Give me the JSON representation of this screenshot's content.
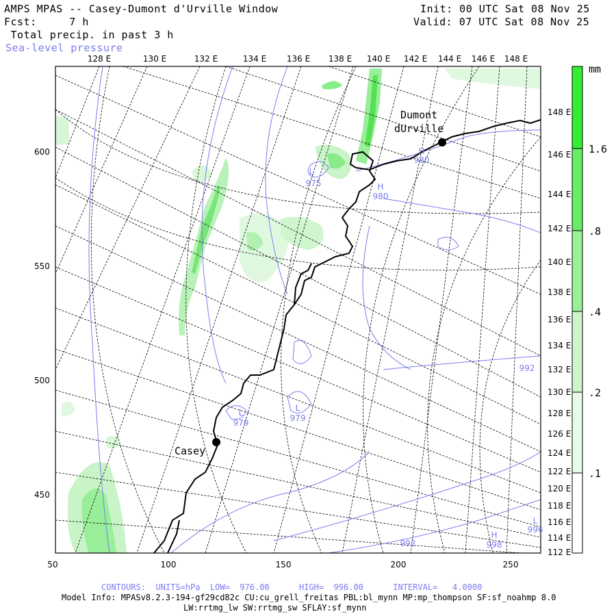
{
  "header": {
    "title": "AMPS MPAS -- Casey-Dumont d'Urville Window",
    "forecast": "Fcst:     7 h",
    "field": " Total precip. in past 3 h",
    "overlay": "Sea-level pressure",
    "init": "Init: 00 UTC Sat 08 Nov 25",
    "valid": "Valid: 07 UTC Sat 08 Nov 25"
  },
  "map": {
    "top_lon_labels": [
      "128 E",
      "130 E",
      "132 E",
      "134 E",
      "136 E",
      "138 E",
      "140 E",
      "142 E",
      "144 E",
      "146 E",
      "148 E"
    ],
    "right_lon_labels": [
      "148 E",
      "146 E",
      "144 E",
      "142 E",
      "140 E",
      "138 E",
      "136 E",
      "134 E",
      "132 E",
      "130 E",
      "128 E",
      "126 E",
      "124 E",
      "122 E",
      "120 E",
      "118 E",
      "116 E",
      "114 E",
      "112 E"
    ],
    "left_grid_labels": [
      "600",
      "550",
      "500",
      "450"
    ],
    "bottom_grid_labels": [
      "50",
      "100",
      "150",
      "200",
      "250"
    ],
    "stations": [
      {
        "name": "Casey"
      },
      {
        "name": "Dumont"
      },
      {
        "name": "dUrville"
      }
    ],
    "pressure_labels": [
      {
        "letter": "L",
        "value": "975"
      },
      {
        "letter": "H",
        "value": "980"
      },
      {
        "letter": "H",
        "value": "980"
      },
      {
        "letter": "L",
        "value": "979"
      },
      {
        "letter": "L",
        "value": "979"
      },
      {
        "letter": "",
        "value": "992"
      },
      {
        "letter": "",
        "value": "992"
      },
      {
        "letter": "L",
        "value": "996"
      },
      {
        "letter": "H",
        "value": "998"
      }
    ]
  },
  "colorbar": {
    "unit": "mm",
    "labels": [
      "1.6",
      ".8",
      ".4",
      ".2",
      ".1"
    ],
    "colors": [
      "#33ee33",
      "#66ee66",
      "#99f099",
      "#ccf5cc",
      "#e8fae8"
    ]
  },
  "footer": {
    "contours": "CONTOURS:  UNITS=hPa  LOW=  976.00      HIGH=  996.00      INTERVAL=   4.0000",
    "model_info": "Model Info: MPASv8.2.3-194-gf29cd82c CU:cu_grell_freitas PBL:bl_mynn MP:mp_thompson SF:sf_noahmp 8.0",
    "model_info2": "LW:rrtmg_lw SW:rrtmg_sw SFLAY:sf_mynn"
  }
}
